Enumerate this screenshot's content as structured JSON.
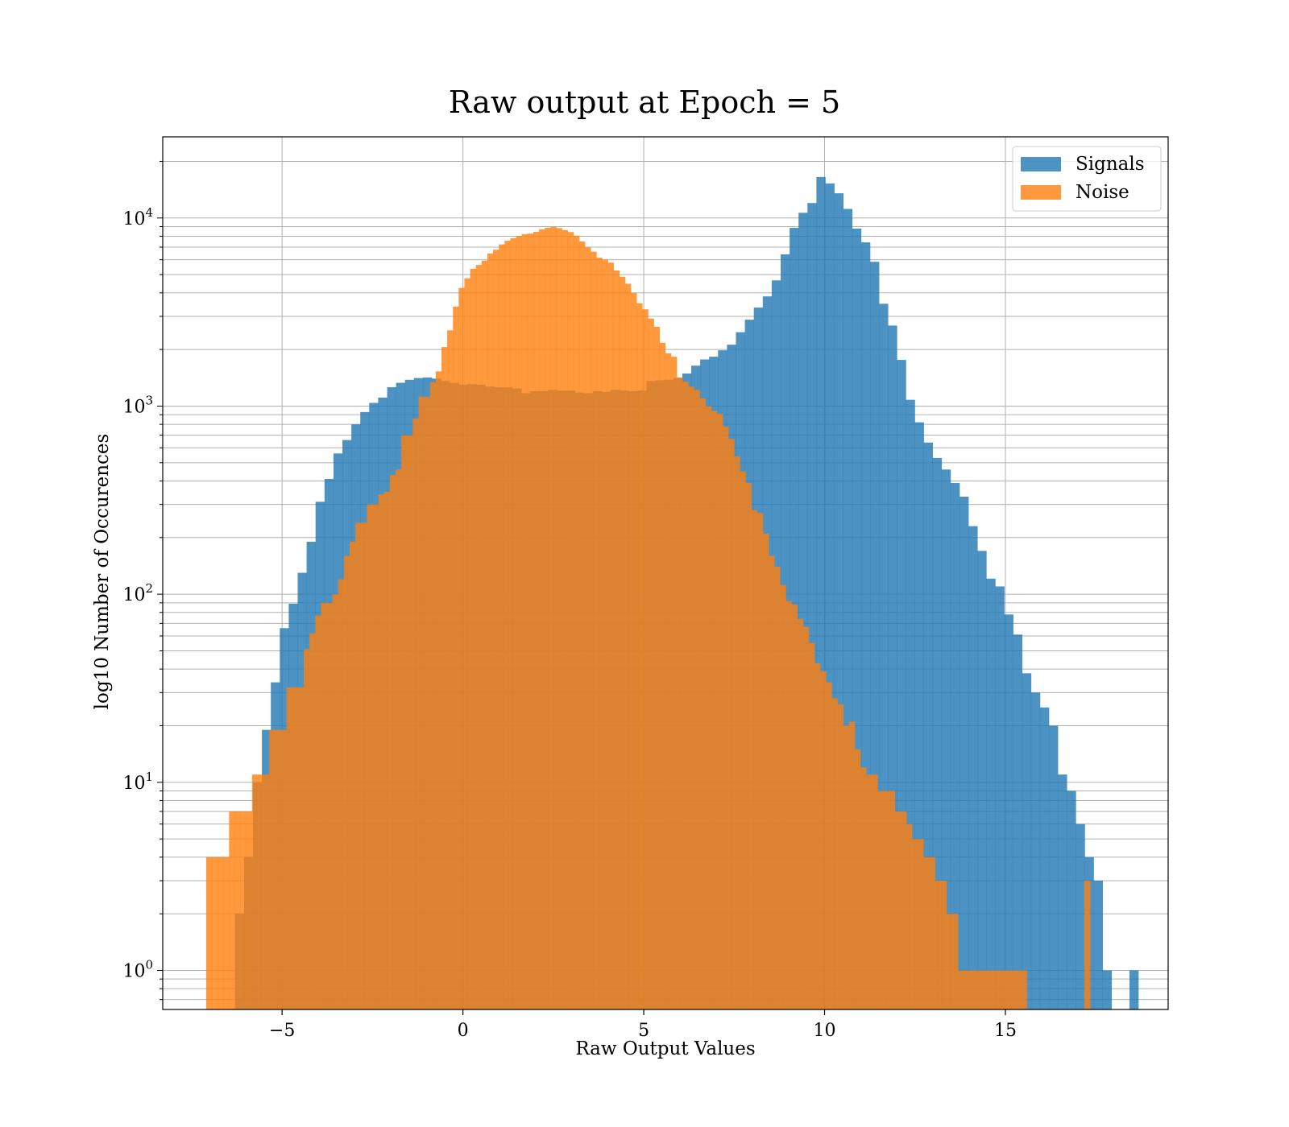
{
  "chart_data": {
    "type": "histogram",
    "title": "Raw output at Epoch = 5",
    "xlabel": "Raw Output Values",
    "ylabel": "log10 Number of Occurences",
    "xlim": [
      -8.3,
      19.5
    ],
    "ylim": [
      0.62,
      27000
    ],
    "yscale": "log",
    "grid": true,
    "legend_position": "top-right",
    "x_ticks": [
      -5,
      0,
      5,
      10,
      15
    ],
    "x_tick_labels": [
      "−5",
      "0",
      "5",
      "10",
      "15"
    ],
    "y_ticks": [
      1,
      10,
      100,
      1000,
      10000
    ],
    "y_tick_labels": [
      {
        "base": "10",
        "exp": "0"
      },
      {
        "base": "10",
        "exp": "1"
      },
      {
        "base": "10",
        "exp": "2"
      },
      {
        "base": "10",
        "exp": "3"
      },
      {
        "base": "10",
        "exp": "4"
      }
    ],
    "series": [
      {
        "name": "Signals",
        "color": "#1f77b4",
        "opacity": 0.8,
        "bin_start": -6.3,
        "bin_width": 0.2473,
        "values": [
          2,
          4,
          10,
          19,
          34,
          66,
          89,
          130,
          190,
          310,
          410,
          560,
          660,
          800,
          930,
          1040,
          1110,
          1260,
          1330,
          1380,
          1410,
          1420,
          1400,
          1360,
          1330,
          1300,
          1310,
          1300,
          1270,
          1260,
          1260,
          1240,
          1170,
          1200,
          1200,
          1220,
          1210,
          1210,
          1180,
          1170,
          1200,
          1190,
          1220,
          1210,
          1200,
          1210,
          1360,
          1370,
          1380,
          1410,
          1490,
          1640,
          1770,
          1830,
          1980,
          2120,
          2470,
          2880,
          3340,
          3830,
          4660,
          6410,
          8860,
          10660,
          12010,
          16520,
          15270,
          13530,
          11180,
          8780,
          7420,
          5850,
          3500,
          2680,
          1760,
          1080,
          820,
          640,
          530,
          460,
          390,
          330,
          230,
          170,
          121,
          110,
          78,
          61,
          38,
          30,
          25,
          20,
          11,
          9,
          6,
          4,
          3,
          1,
          0,
          0,
          1
        ]
      },
      {
        "name": "Noise",
        "color": "#ff7f0e",
        "opacity": 0.8,
        "bin_start": -7.1,
        "bin_width": 0.1587,
        "values": [
          4,
          4,
          4,
          4,
          7,
          7,
          7,
          7,
          11,
          11,
          11,
          19,
          19,
          19,
          32,
          32,
          32,
          51,
          62,
          77,
          90,
          90,
          100,
          120,
          160,
          190,
          240,
          240,
          300,
          300,
          340,
          350,
          430,
          460,
          700,
          700,
          860,
          1120,
          1120,
          1340,
          1530,
          2060,
          2530,
          3380,
          4250,
          4780,
          5370,
          5630,
          5930,
          6480,
          6780,
          7240,
          7570,
          7810,
          8030,
          8210,
          8260,
          8440,
          8710,
          8880,
          8950,
          8840,
          8620,
          8420,
          8060,
          7510,
          6970,
          6620,
          6150,
          6010,
          5790,
          5260,
          4870,
          4470,
          3990,
          3520,
          3270,
          2920,
          2640,
          2170,
          1910,
          1830,
          1420,
          1350,
          1270,
          1220,
          1100,
          1000,
          940,
          910,
          780,
          670,
          540,
          450,
          390,
          280,
          270,
          210,
          160,
          140,
          112,
          92,
          88,
          74,
          67,
          55,
          43,
          39,
          34,
          28,
          26,
          20,
          21,
          15,
          12,
          11,
          11,
          9,
          9,
          9,
          7,
          7,
          6,
          5,
          5,
          4,
          4,
          3,
          3,
          2,
          2,
          1,
          1,
          1,
          1,
          1,
          1,
          1,
          1,
          1,
          1,
          1,
          1,
          0,
          0,
          0,
          0,
          0,
          0,
          0,
          0,
          0,
          0,
          3
        ]
      }
    ]
  }
}
